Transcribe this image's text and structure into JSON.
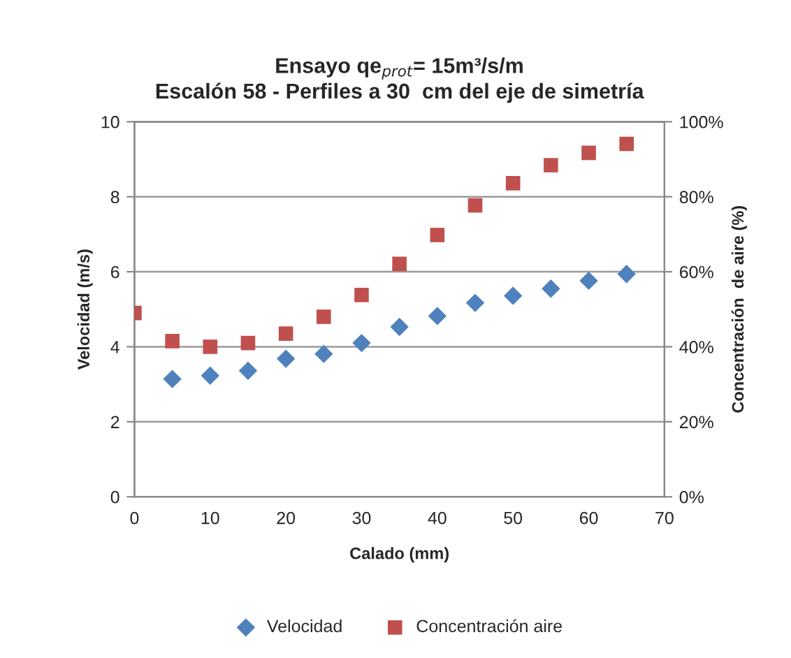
{
  "chart_data": {
    "type": "scatter",
    "title": "Ensayo qe$_{prot}$= 15m³/s/m\nEscalón 58 - Perfiles a 30  cm del eje de simetría",
    "xlabel": "Calado (mm)",
    "ylabel": "Velocidad (m/s)",
    "y2label": "Concentración  de aire (%)",
    "xlim": [
      0,
      70
    ],
    "xticks": [
      0,
      10,
      20,
      30,
      40,
      50,
      60,
      70
    ],
    "ylim": [
      0,
      10
    ],
    "yticks": [
      0,
      2,
      4,
      6,
      8,
      10
    ],
    "y2lim": [
      0,
      100
    ],
    "y2ticks": [
      {
        "value": 0,
        "label": "0%"
      },
      {
        "value": 20,
        "label": "20%"
      },
      {
        "value": 40,
        "label": "40%"
      },
      {
        "value": 60,
        "label": "60%"
      },
      {
        "value": 80,
        "label": "80%"
      },
      {
        "value": 100,
        "label": "100%"
      }
    ],
    "grid": "y",
    "legend": "bottom",
    "series": [
      {
        "name": "Velocidad",
        "color": "#4f81bd",
        "marker": "diamond",
        "x": [
          5,
          10,
          15,
          20,
          25,
          30,
          35,
          40,
          45,
          50,
          55,
          60,
          65
        ],
        "values": [
          3.14,
          3.23,
          3.36,
          3.68,
          3.81,
          4.1,
          4.53,
          4.82,
          5.17,
          5.36,
          5.55,
          5.76,
          5.94
        ]
      },
      {
        "name": "Concentración aire",
        "color": "#c0504d",
        "marker": "square",
        "axis": "y2",
        "x": [
          0,
          5,
          10,
          15,
          20,
          25,
          30,
          35,
          40,
          45,
          50,
          55,
          60,
          65
        ],
        "values": [
          49.0,
          41.5,
          40.0,
          41.0,
          43.5,
          48.0,
          53.8,
          62.1,
          69.8,
          77.7,
          83.6,
          88.4,
          91.7,
          94.1
        ]
      }
    ]
  }
}
